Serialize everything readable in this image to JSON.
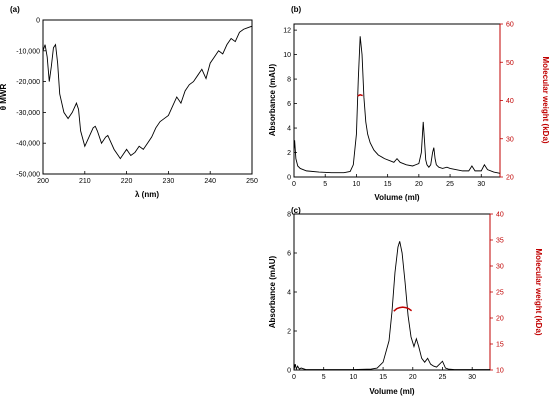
{
  "chart_data": [
    {
      "panel": "(a)",
      "type": "line",
      "xlabel": "λ (nm)",
      "ylabel": "θ MWR",
      "xlim": [
        200,
        250
      ],
      "ylim": [
        -50000,
        0
      ],
      "xticks": [
        200,
        210,
        220,
        230,
        240,
        250
      ],
      "yticks": [
        0,
        -10000,
        -20000,
        -30000,
        -40000,
        -50000
      ],
      "ytick_labels": [
        "0",
        "-10,000",
        "-20,000",
        "-30,000",
        "-40,000",
        "-50,000"
      ],
      "grid": false,
      "color": "#000000",
      "series": [
        {
          "x": [
            200,
            200.5,
            201,
            201.5,
            202,
            202.5,
            203,
            203.5,
            204,
            205,
            206,
            207,
            208,
            208.5,
            209,
            210,
            211,
            212,
            212.5,
            213,
            214,
            215,
            215.5,
            216,
            217,
            218,
            218.5,
            219,
            220,
            221,
            222,
            223,
            224,
            225,
            226,
            227,
            228,
            229,
            230,
            231,
            232,
            233,
            234,
            235,
            236,
            237,
            238,
            239,
            240,
            241,
            242,
            243,
            244,
            245,
            246,
            247,
            248,
            249,
            250
          ],
          "y": [
            -10000,
            -8000,
            -12000,
            -20000,
            -15000,
            -9000,
            -8000,
            -14000,
            -24000,
            -30000,
            -32000,
            -30000,
            -27000,
            -29000,
            -36000,
            -41000,
            -38000,
            -35000,
            -34500,
            -36000,
            -40000,
            -38000,
            -37500,
            -39000,
            -42000,
            -44000,
            -45000,
            -44000,
            -42000,
            -44000,
            -43000,
            -41000,
            -42000,
            -40000,
            -38000,
            -35000,
            -33000,
            -32000,
            -31000,
            -28000,
            -25000,
            -27000,
            -23000,
            -21000,
            -20000,
            -18000,
            -16000,
            -19000,
            -14000,
            -12000,
            -10000,
            -11000,
            -8000,
            -6000,
            -7000,
            -4000,
            -3000,
            -2500,
            -2000
          ]
        }
      ]
    },
    {
      "panel": "(b)",
      "type": "line",
      "xlabel": "Volume (ml)",
      "ylabel": "Absorbance (mAU)",
      "y2label": "Molecular weight (kDa)",
      "xlim": [
        0,
        33
      ],
      "ylim": [
        0,
        12.5
      ],
      "y2lim": [
        20,
        60
      ],
      "xticks": [
        0,
        5,
        10,
        15,
        20,
        25,
        30
      ],
      "yticks": [
        0,
        2,
        4,
        6,
        8,
        10,
        12
      ],
      "y2ticks": [
        20,
        30,
        40,
        50,
        60
      ],
      "grid": false,
      "series": [
        {
          "color": "#000000",
          "axis": "left",
          "x": [
            0,
            0.1,
            0.3,
            0.6,
            1,
            2,
            4,
            6,
            8,
            9,
            9.5,
            10,
            10.3,
            10.6,
            10.9,
            11.2,
            11.5,
            11.8,
            12.2,
            12.8,
            13.5,
            14.5,
            15.5,
            16,
            16.5,
            17,
            18,
            19,
            19.5,
            20,
            20.4,
            20.7,
            20.9,
            21.1,
            21.3,
            21.6,
            21.9,
            22.2,
            22.4,
            22.6,
            22.8,
            23.2,
            23.8,
            24.5,
            25,
            26,
            27,
            28,
            28.5,
            29,
            30,
            30.5,
            31,
            32,
            33
          ],
          "y": [
            2.2,
            3.0,
            1.5,
            0.9,
            0.7,
            0.5,
            0.4,
            0.35,
            0.35,
            0.45,
            1.0,
            3.5,
            8.0,
            11.5,
            10.0,
            6.5,
            4.5,
            3.5,
            2.8,
            2.2,
            1.8,
            1.5,
            1.3,
            1.2,
            1.5,
            1.2,
            1.0,
            0.9,
            1.0,
            1.1,
            2.0,
            4.5,
            3.0,
            1.4,
            1.0,
            0.8,
            1.0,
            2.0,
            2.4,
            1.5,
            1.0,
            0.8,
            0.7,
            0.8,
            0.7,
            0.6,
            0.5,
            0.5,
            0.9,
            0.5,
            0.5,
            1.0,
            0.6,
            0.4,
            0.3
          ]
        },
        {
          "color": "#c00000",
          "axis": "right",
          "x": [
            10.2,
            10.6,
            11.0
          ],
          "y": [
            41.2,
            41.5,
            41.3
          ]
        }
      ]
    },
    {
      "panel": "(c)",
      "type": "line",
      "xlabel": "Volume (ml)",
      "ylabel": "Absorbance (mAU)",
      "y2label": "Molecular weight (kDa)",
      "xlim": [
        0,
        33
      ],
      "ylim": [
        0,
        8
      ],
      "y2lim": [
        10,
        40
      ],
      "xticks": [
        0,
        5,
        10,
        15,
        20,
        25,
        30
      ],
      "yticks": [
        0,
        2,
        4,
        6,
        8
      ],
      "y2ticks": [
        10,
        15,
        20,
        25,
        30,
        35,
        40
      ],
      "grid": false,
      "series": [
        {
          "color": "#000000",
          "axis": "left",
          "x": [
            0,
            0.2,
            0.4,
            0.6,
            0.9,
            1.2,
            2,
            5,
            10,
            13,
            14,
            15,
            16,
            16.5,
            17,
            17.5,
            17.8,
            18.2,
            18.7,
            19.2,
            19.7,
            20.2,
            20.6,
            21,
            21.5,
            22,
            22.5,
            23,
            23.5,
            24,
            24.5,
            25,
            25.5,
            26,
            27,
            30,
            33
          ],
          "y": [
            0.0,
            0.3,
            0.05,
            0.2,
            0.05,
            0.1,
            0.02,
            0.02,
            0.02,
            0.05,
            0.1,
            0.4,
            1.5,
            3.0,
            5.0,
            6.3,
            6.6,
            6.0,
            4.5,
            2.8,
            1.7,
            1.2,
            1.6,
            1.2,
            0.6,
            0.4,
            0.6,
            0.3,
            0.2,
            0.15,
            0.3,
            0.45,
            0.1,
            0.05,
            0.02,
            0.02,
            0.02
          ]
        },
        {
          "color": "#c00000",
          "axis": "right",
          "x": [
            16.8,
            17.3,
            17.8,
            18.3,
            18.8,
            19.3,
            19.8
          ],
          "y": [
            21.3,
            21.8,
            22.0,
            22.1,
            22.0,
            21.8,
            21.4
          ]
        }
      ]
    }
  ]
}
